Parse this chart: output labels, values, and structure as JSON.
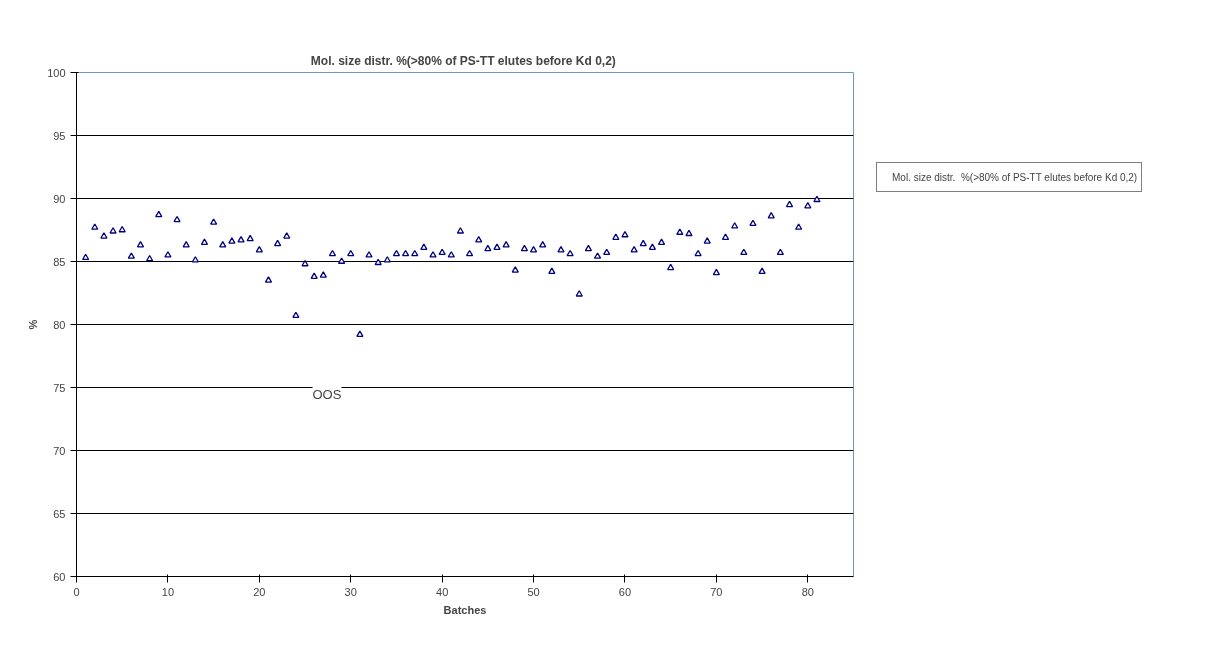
{
  "chart_data": {
    "type": "scatter",
    "title": "Mol. size distr.  %(>80% of PS-TT elutes before Kd 0,2)",
    "xlabel": "Batches",
    "ylabel": "%",
    "x": [
      1,
      2,
      3,
      4,
      5,
      6,
      7,
      8,
      9,
      10,
      11,
      12,
      13,
      14,
      15,
      16,
      17,
      18,
      19,
      20,
      21,
      22,
      23,
      24,
      25,
      26,
      27,
      28,
      29,
      30,
      31,
      32,
      33,
      34,
      35,
      36,
      37,
      38,
      39,
      40,
      41,
      42,
      43,
      44,
      45,
      46,
      47,
      48,
      49,
      50,
      51,
      52,
      53,
      54,
      55,
      56,
      57,
      58,
      59,
      60,
      61,
      62,
      63,
      64,
      65,
      66,
      67,
      68,
      69,
      70,
      71,
      72,
      73,
      74,
      75,
      76,
      77,
      78,
      79,
      80,
      81
    ],
    "series": [
      {
        "name": "Mol. size distr.  %(>80% of PS-TT elutes before Kd 0,2)",
        "color": "#000080",
        "values": [
          85.3,
          87.7,
          87.0,
          87.4,
          87.5,
          85.4,
          86.3,
          85.2,
          88.7,
          85.5,
          88.3,
          86.3,
          85.1,
          86.5,
          88.1,
          86.3,
          86.6,
          86.7,
          86.8,
          85.9,
          83.5,
          86.4,
          87.0,
          80.7,
          84.8,
          83.8,
          83.9,
          85.6,
          85.0,
          85.6,
          79.2,
          85.5,
          84.9,
          85.1,
          85.6,
          85.6,
          85.6,
          86.1,
          85.5,
          85.7,
          85.5,
          87.4,
          85.6,
          86.7,
          86.0,
          86.1,
          86.3,
          84.3,
          86.0,
          85.9,
          86.3,
          84.2,
          85.9,
          85.6,
          82.4,
          86.0,
          85.4,
          85.7,
          86.9,
          87.1,
          85.9,
          86.4,
          86.1,
          86.5,
          84.5,
          87.3,
          87.2,
          85.6,
          86.6,
          84.1,
          86.9,
          87.8,
          85.7,
          88.0,
          84.2,
          88.6,
          85.7,
          89.5,
          87.7,
          89.4,
          89.9
        ]
      }
    ],
    "xlim": [
      0,
      85
    ],
    "xticks": [
      0,
      10,
      20,
      30,
      40,
      50,
      60,
      70,
      80
    ],
    "ylim": [
      60,
      100
    ],
    "yticks": [
      60,
      65,
      70,
      75,
      80,
      85,
      90,
      95,
      100
    ],
    "grid": "y",
    "legend": "right",
    "marker": "triangle",
    "annotations": [
      "OOS"
    ]
  }
}
